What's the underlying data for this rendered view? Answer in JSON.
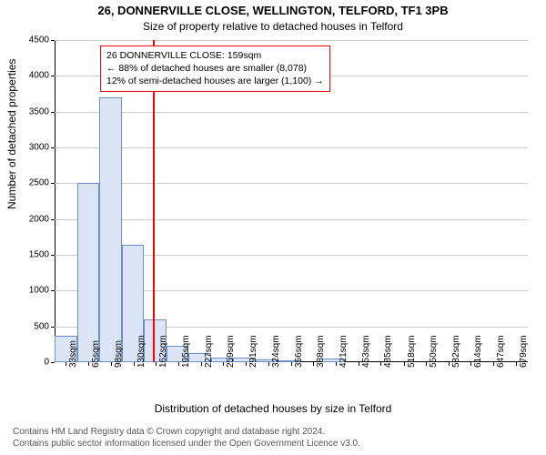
{
  "title": "26, DONNERVILLE CLOSE, WELLINGTON, TELFORD, TF1 3PB",
  "subtitle": "Size of property relative to detached houses in Telford",
  "ylabel": "Number of detached properties",
  "xlabel": "Distribution of detached houses by size in Telford",
  "footnote_line1": "Contains HM Land Registry data © Crown copyright and database right 2024.",
  "footnote_line2": "Contains public sector information licensed under the Open Government Licence v3.0.",
  "chart": {
    "type": "histogram",
    "background_color": "#ffffff",
    "grid_color": "#cccccc",
    "axis_color": "#000000",
    "bar_fill": "#dbe5f5",
    "bar_border": "#6f90c6",
    "marker_color": "#ff0000",
    "marker_x": 159,
    "text_color": "#000000",
    "tick_fontsize": 10,
    "label_fontsize": 12,
    "title_fontsize": 13,
    "ylim": [
      0,
      4500
    ],
    "ytick_step": 500,
    "xlim": [
      17,
      696
    ],
    "xticks": [
      33,
      65,
      98,
      130,
      162,
      195,
      227,
      259,
      291,
      324,
      356,
      388,
      421,
      453,
      485,
      518,
      550,
      582,
      614,
      647,
      679
    ],
    "xtick_suffix": "sqm",
    "bar_width_x": 32,
    "bars": [
      {
        "x": 17,
        "y": 370
      },
      {
        "x": 49,
        "y": 2500
      },
      {
        "x": 81,
        "y": 3700
      },
      {
        "x": 113,
        "y": 1640
      },
      {
        "x": 145,
        "y": 600
      },
      {
        "x": 177,
        "y": 230
      },
      {
        "x": 209,
        "y": 130
      },
      {
        "x": 241,
        "y": 70
      },
      {
        "x": 273,
        "y": 60
      },
      {
        "x": 305,
        "y": 40
      },
      {
        "x": 337,
        "y": 15
      },
      {
        "x": 369,
        "y": 0
      },
      {
        "x": 401,
        "y": 45
      },
      {
        "x": 433,
        "y": 0
      },
      {
        "x": 465,
        "y": 0
      },
      {
        "x": 497,
        "y": 0
      },
      {
        "x": 529,
        "y": 0
      },
      {
        "x": 561,
        "y": 0
      },
      {
        "x": 593,
        "y": 0
      },
      {
        "x": 625,
        "y": 0
      },
      {
        "x": 657,
        "y": 0
      }
    ]
  },
  "annotation": {
    "line1": "26 DONNERVILLE CLOSE: 159sqm",
    "line2": "← 88% of detached houses are smaller (8,078)",
    "line3": "12% of semi-detached houses are larger (1,100) →",
    "border_color": "#ff0000",
    "background": "#ffffff",
    "fontsize": 10.5
  }
}
